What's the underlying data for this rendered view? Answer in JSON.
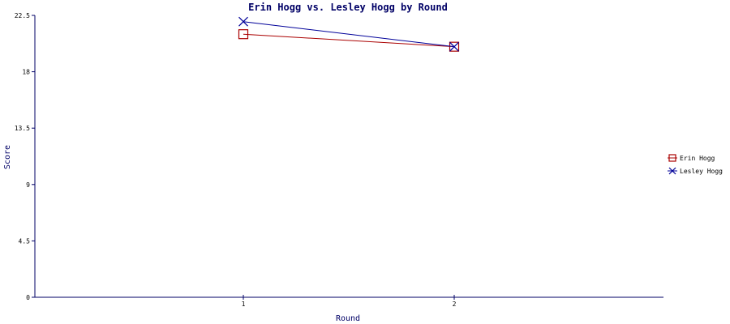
{
  "chart_data": {
    "type": "line",
    "title": "Erin Hogg vs. Lesley Hogg by Round",
    "xlabel": "Round",
    "ylabel": "Score",
    "categories": [
      "1",
      "2"
    ],
    "ylim": [
      0,
      22.5
    ],
    "yticks": [
      "0",
      "4.5",
      "9",
      "13.5",
      "18",
      "22.5"
    ],
    "grid": false,
    "legend_position": "right",
    "series": [
      {
        "name": "Erin Hogg",
        "values": [
          21,
          20
        ],
        "color": "#aa0000",
        "marker": "square"
      },
      {
        "name": "Lesley Hogg",
        "values": [
          22,
          20
        ],
        "color": "#000099",
        "marker": "cross"
      }
    ],
    "axis_color": "#000066"
  }
}
